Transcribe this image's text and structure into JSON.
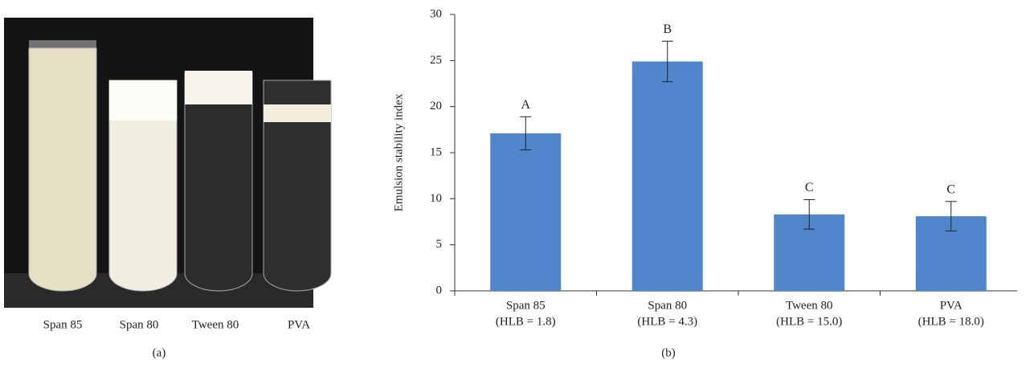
{
  "photo": {
    "labels": [
      "Span 85",
      "Span 80",
      "Tween 80",
      "PVA"
    ],
    "caption": "(a)"
  },
  "chart_data": {
    "type": "bar",
    "caption": "(b)",
    "y_label": "Emulsion stability index",
    "categories": [
      "Span 85",
      "Span 80",
      "Tween 80",
      "PVA"
    ],
    "category_sublabels": [
      "(HLB = 1.8)",
      "(HLB = 4.3)",
      "(HLB = 15.0)",
      "(HLB = 18.0)"
    ],
    "values": [
      17.1,
      24.9,
      8.3,
      8.1
    ],
    "errors": [
      1.8,
      2.2,
      1.6,
      1.6
    ],
    "annotations": [
      "A",
      "B",
      "C",
      "C"
    ],
    "color": "#5087cc",
    "ylim": [
      0,
      30
    ],
    "yticks": [
      0,
      5,
      10,
      15,
      20,
      25,
      30
    ],
    "grid": false
  }
}
